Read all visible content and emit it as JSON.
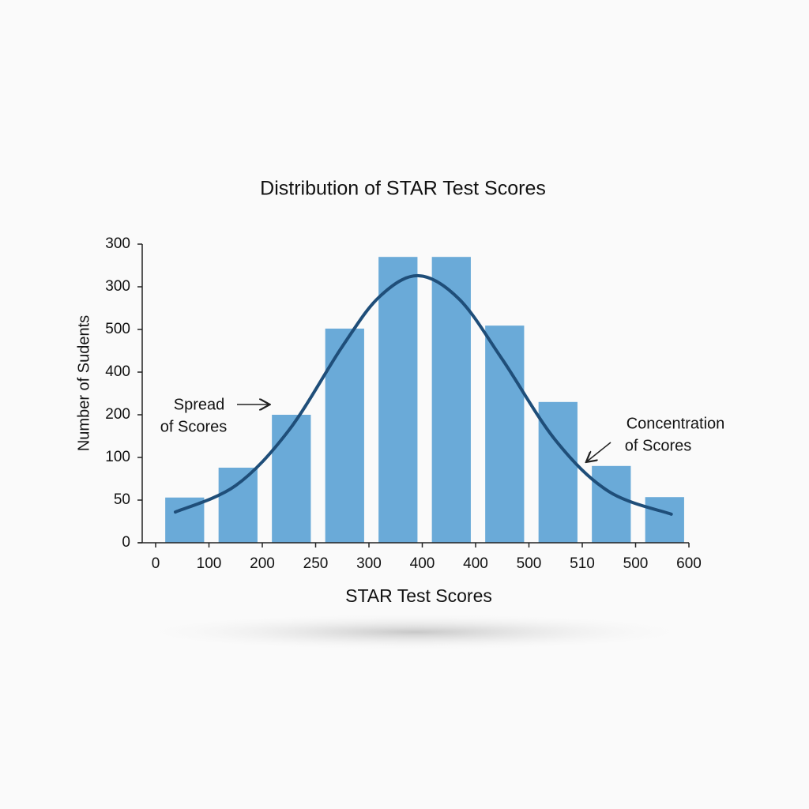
{
  "chart_data": {
    "type": "histogram",
    "title": "Distribution of STAR Test Scores",
    "x_label": "STAR Test Scores",
    "y_label": "Number of Sudents",
    "color": "#6aaad8",
    "values": [
      1.06,
      1.76,
      3.0,
      5.02,
      6.7,
      6.7,
      5.09,
      3.3,
      1.8,
      1.07
    ],
    "xlim": [
      0,
      10
    ],
    "xticks": [
      {
        "value": 0,
        "label": "0"
      },
      {
        "value": 1,
        "label": "100"
      },
      {
        "value": 2,
        "label": "200"
      },
      {
        "value": 3,
        "label": "250"
      },
      {
        "value": 4,
        "label": "300"
      },
      {
        "value": 5,
        "label": "400"
      },
      {
        "value": 6,
        "label": "400"
      },
      {
        "value": 7,
        "label": "500"
      },
      {
        "value": 8,
        "label": "510"
      },
      {
        "value": 9,
        "label": "500"
      },
      {
        "value": 10,
        "label": "600"
      }
    ],
    "ylim": [
      0,
      7
    ],
    "yticks": [
      {
        "value": 0,
        "label": "0"
      },
      {
        "value": 1,
        "label": "50"
      },
      {
        "value": 2,
        "label": "100"
      },
      {
        "value": 3,
        "label": "200"
      },
      {
        "value": 4,
        "label": "400"
      },
      {
        "value": 5,
        "label": "500"
      },
      {
        "value": 6,
        "label": "300"
      },
      {
        "value": 7,
        "label": "300"
      }
    ],
    "curve": {
      "color": "#1f4e79",
      "x": [
        0.37,
        1.5,
        2.5,
        3.5,
        4.2,
        4.93,
        5.7,
        6.5,
        7.5,
        8.5,
        9.67
      ],
      "values": [
        0.72,
        1.34,
        2.64,
        4.6,
        5.77,
        6.26,
        5.7,
        4.3,
        2.4,
        1.2,
        0.67
      ]
    },
    "annotations": [
      {
        "lines": [
          "Spread",
          "of Scores"
        ]
      },
      {
        "lines": [
          "Concentration",
          "of Scores"
        ]
      }
    ]
  }
}
